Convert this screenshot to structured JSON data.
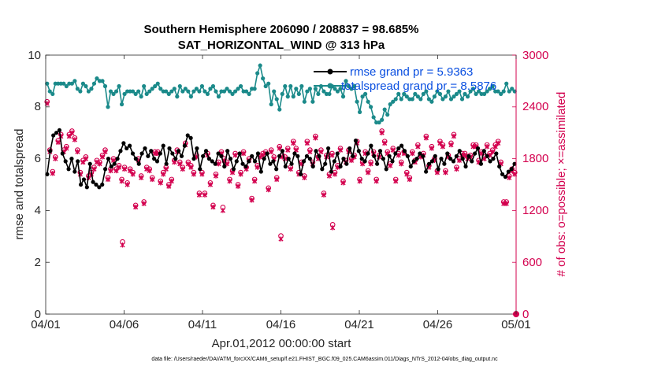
{
  "chart_data": {
    "type": "line",
    "title_line1": "Southern Hemisphere 206090 / 208837 = 98.685%",
    "title_line2": "SAT_HORIZONTAL_WIND @ 313 hPa",
    "xlabel": "Apr.01,2012 00:00:00 start",
    "ylabel_left": "rmse and totalspread",
    "ylabel_right": "# of obs: o=possible; ×=assimilated",
    "footer": "data file: /Users/raeder/DAI/ATM_forcXX/CAM6_setup/f.e21.FHIST_BGC.f09_025.CAM6assim.011/Diags_NTrS_2012-04/obs_diag_output.nc",
    "x_ticks": [
      "04/01",
      "04/06",
      "04/11",
      "04/16",
      "04/21",
      "04/26",
      "05/01"
    ],
    "x_range_days": [
      0,
      30
    ],
    "y_left_ticks": [
      "0",
      "2",
      "4",
      "6",
      "8",
      "10"
    ],
    "y_left_range": [
      0,
      10
    ],
    "y_right_ticks": [
      "0",
      "600",
      "1200",
      "1800",
      "2400",
      "3000"
    ],
    "y_right_range": [
      0,
      3000
    ],
    "legend": [
      {
        "label": "rmse grand pr = 5.9363"
      },
      {
        "label": "totalspread grand pr = 8.5876"
      }
    ],
    "colors": {
      "rmse": "#000000",
      "spread": "#1b8a8a",
      "obs": "#d3004e",
      "legend_text": "#0a4fe0",
      "axis": "#262626"
    },
    "series": [
      {
        "name": "rmse",
        "axis": "left",
        "values": [
          5.4,
          6.3,
          6.9,
          7.0,
          7.1,
          6.2,
          5.9,
          5.6,
          6.0,
          5.5,
          5.9,
          5.0,
          5.2,
          4.9,
          5.8,
          5.1,
          5.0,
          4.9,
          5.0,
          5.6,
          6.0,
          5.7,
          5.8,
          6.0,
          6.3,
          6.6,
          6.4,
          6.5,
          6.2,
          6.0,
          5.8,
          6.2,
          6.4,
          6.1,
          6.3,
          6.0,
          5.9,
          6.2,
          6.5,
          5.8,
          6.4,
          6.2,
          6.0,
          6.3,
          6.1,
          6.5,
          6.9,
          6.8,
          6.0,
          6.4,
          5.6,
          6.1,
          6.3,
          6.0,
          5.9,
          5.8,
          6.2,
          6.1,
          5.7,
          6.3,
          6.0,
          5.6,
          5.9,
          6.2,
          5.8,
          5.7,
          5.9,
          6.1,
          5.9,
          6.2,
          5.5,
          6.0,
          6.2,
          5.8,
          5.9,
          5.6,
          6.1,
          6.3,
          5.7,
          6.0,
          5.8,
          6.2,
          6.1,
          5.4,
          5.9,
          6.1,
          6.0,
          5.7,
          6.3,
          6.1,
          5.6,
          5.8,
          6.4,
          5.5,
          5.9,
          6.2,
          5.7,
          6.0,
          5.8,
          6.4,
          6.1,
          6.7,
          6.3,
          6.0,
          5.9,
          6.2,
          6.5,
          6.1,
          5.8,
          6.3,
          6.0,
          5.6,
          6.1,
          5.9,
          6.2,
          6.4,
          6.5,
          6.3,
          6.1,
          5.7,
          5.9,
          6.0,
          6.2,
          6.1,
          5.5,
          5.8,
          5.9,
          6.1,
          5.6,
          6.0,
          5.8,
          6.2,
          6.0,
          5.9,
          6.1,
          6.3,
          6.0,
          5.7,
          6.1,
          5.9,
          6.2,
          6.4,
          5.8,
          6.3,
          6.1,
          5.9,
          6.0,
          6.2,
          5.7,
          5.4,
          5.3,
          5.5,
          5.6,
          5.8
        ]
      },
      {
        "name": "totalspread",
        "axis": "left",
        "values": [
          8.9,
          8.6,
          8.5,
          8.9,
          8.9,
          8.9,
          8.9,
          8.8,
          8.9,
          8.9,
          9.0,
          8.7,
          8.6,
          8.9,
          8.8,
          8.6,
          8.7,
          8.9,
          9.1,
          9.0,
          9.0,
          8.8,
          8.0,
          8.6,
          8.5,
          8.6,
          8.8,
          8.1,
          8.5,
          8.6,
          8.6,
          8.6,
          8.5,
          8.6,
          8.4,
          8.8,
          8.5,
          8.6,
          8.7,
          8.8,
          8.9,
          8.7,
          8.6,
          8.6,
          8.5,
          8.6,
          8.7,
          8.4,
          8.8,
          8.6,
          8.7,
          8.6,
          8.4,
          8.6,
          8.7,
          8.6,
          8.8,
          8.6,
          8.5,
          8.7,
          8.8,
          8.6,
          8.4,
          8.6,
          8.6,
          8.7,
          8.6,
          8.5,
          8.6,
          8.7,
          8.8,
          8.6,
          8.6,
          8.5,
          8.7,
          8.7,
          9.3,
          9.6,
          9.1,
          8.8,
          8.9,
          8.1,
          8.6,
          8.3,
          7.9,
          8.5,
          8.8,
          8.4,
          8.8,
          8.4,
          8.7,
          8.5,
          8.8,
          8.2,
          8.6,
          8.7,
          8.2,
          8.7,
          8.5,
          8.8,
          8.6,
          8.5,
          8.5,
          8.8,
          8.7,
          8.6,
          8.7,
          8.4,
          9.0,
          8.8,
          8.7,
          8.8,
          8.2,
          7.8,
          8.4,
          8.5,
          8.2,
          8.0,
          7.6,
          7.4,
          7.4,
          7.5,
          7.9,
          7.7,
          8.1,
          8.2,
          8.3,
          8.5,
          8.3,
          8.5,
          8.4,
          8.3,
          8.3,
          8.5,
          8.4,
          8.3,
          8.5,
          8.6,
          8.3,
          8.2,
          8.4,
          8.6,
          8.5,
          8.3,
          8.4,
          8.6,
          8.3,
          8.4,
          8.5,
          8.6,
          8.3,
          8.5,
          8.4,
          8.6,
          8.7,
          8.5,
          8.6,
          8.5,
          8.5,
          8.6,
          8.7,
          8.8,
          8.6,
          8.6,
          8.5,
          8.6,
          8.9,
          8.6,
          8.7,
          8.6
        ]
      },
      {
        "name": "obs_possible",
        "axis": "right",
        "values": [
          2460,
          1900,
          1650,
          1820,
          2010,
          2080,
          1900,
          1940,
          2080,
          2120,
          2040,
          1900,
          1640,
          1780,
          1820,
          1600,
          1640,
          1700,
          1780,
          1760,
          1840,
          1900,
          1580,
          1680,
          1800,
          1680,
          1720,
          1560,
          1700,
          1520,
          1680,
          1640,
          1260,
          1800,
          1600,
          1300,
          1700,
          1680,
          1580,
          1880,
          1880,
          1540,
          1640,
          1700,
          1500,
          1560,
          1780,
          1900,
          1760,
          1700,
          1980,
          1760,
          1720,
          1640,
          1840,
          1400,
          1640,
          1400,
          1860,
          1520,
          1260,
          1620,
          1760,
          1880,
          1800,
          1760,
          1560,
          1660,
          1860,
          1500,
          1640,
          1880,
          1700,
          1800,
          1340,
          1560,
          1720,
          1840,
          1860,
          1880,
          1460,
          1900,
          1820,
          1580,
          1940,
          1840,
          1820,
          1920,
          1700,
          2000,
          1920,
          1640,
          1760,
          1600,
          2000,
          1900,
          1760,
          2060,
          1820,
          1900,
          1400,
          1840,
          1620,
          1860,
          1640,
          1720,
          1920,
          1540,
          1780,
          1900,
          1800,
          1840,
          2000,
          1560,
          1760,
          1880,
          1660,
          1760,
          1880,
          1560,
          1840,
          2120,
          2000,
          1880,
          1740,
          1920,
          1560,
          1860,
          1760,
          1880,
          1640,
          1580,
          1880,
          1780,
          1960,
          1840,
          1860,
          2060,
          1720,
          1940,
          1800,
          1660,
          2000,
          1960,
          1660,
          1840,
          1980,
          2080,
          1700,
          1800,
          1860,
          1860,
          1820,
          1840,
          1960,
          1960,
          1780,
          1880,
          1820,
          1960,
          1860,
          1900,
          1960,
          2000,
          1760,
          1300,
          1300,
          1600,
          1680,
          1640
        ]
      },
      {
        "name": "obs_assimilated",
        "axis": "right",
        "values": [
          2440,
          1880,
          1630,
          1800,
          1990,
          2060,
          1880,
          1920,
          2060,
          2100,
          2020,
          1880,
          1620,
          1760,
          1800,
          1580,
          1620,
          1680,
          1760,
          1740,
          1820,
          1880,
          1560,
          1660,
          1780,
          1660,
          1700,
          1540,
          1680,
          1500,
          1660,
          1620,
          1240,
          1780,
          1580,
          1280,
          1680,
          1660,
          1560,
          1860,
          1860,
          1520,
          1620,
          1680,
          1480,
          1540,
          1760,
          1880,
          1740,
          1680,
          1960,
          1740,
          1700,
          1620,
          1820,
          1380,
          1620,
          1380,
          1840,
          1500,
          1240,
          1600,
          1740,
          1860,
          1780,
          1740,
          1540,
          1640,
          1840,
          1480,
          1620,
          1860,
          1680,
          1780,
          1320,
          1540,
          1700,
          1820,
          1840,
          1860,
          1440,
          1880,
          1800,
          1560,
          1920,
          1820,
          1800,
          1900,
          1680,
          1980,
          1900,
          1620,
          1740,
          1580,
          1980,
          1880,
          1740,
          2040,
          1800,
          1880,
          1380,
          1820,
          1600,
          1840,
          1620,
          1700,
          1900,
          1520,
          1760,
          1880,
          1780,
          1820,
          1980,
          1540,
          1740,
          1860,
          1640,
          1740,
          1860,
          1540,
          1820,
          2100,
          1980,
          1860,
          1720,
          1900,
          1540,
          1840,
          1740,
          1860,
          1620,
          1560,
          1860,
          1760,
          1940,
          1820,
          1840,
          2040,
          1700,
          1920,
          1780,
          1640,
          1980,
          1940,
          1640,
          1820,
          1960,
          2060,
          1680,
          1780,
          1840,
          1840,
          1800,
          1820,
          1940,
          1940,
          1760,
          1860,
          1800,
          1940,
          1840,
          1880,
          1940,
          1980,
          1740,
          1280,
          1280,
          1580,
          1660,
          1620
        ]
      }
    ],
    "outliers": [
      {
        "name": "obs_low_possible",
        "day": 4.9,
        "value": 800
      },
      {
        "name": "obs_low_possible",
        "day": 11.3,
        "value": 1200
      },
      {
        "name": "obs_low_possible",
        "day": 15.0,
        "value": 870
      },
      {
        "name": "obs_low_possible",
        "day": 18.3,
        "value": 1000
      },
      {
        "name": "obs_end_zero",
        "day": 30.0,
        "value": 0
      }
    ]
  }
}
